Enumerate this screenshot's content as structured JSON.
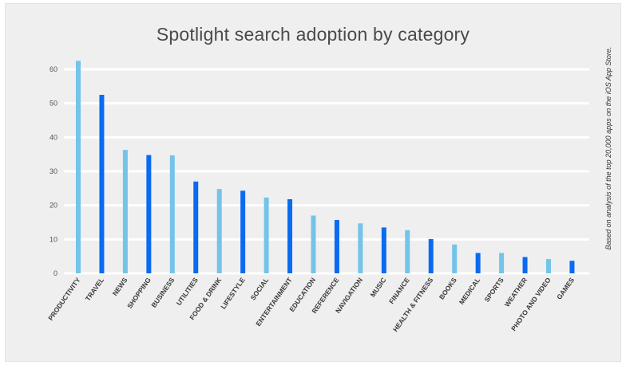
{
  "chart_data": {
    "type": "bar",
    "title": "Spotlight search adoption by category",
    "xlabel": "",
    "ylabel": "",
    "ylim": [
      0,
      65
    ],
    "yticks": [
      0,
      10,
      20,
      30,
      40,
      50,
      60
    ],
    "grid": true,
    "note": "Based on analysis of the top 20,000 apps on the iOS App Store.",
    "colors": {
      "light": "#74c3e9",
      "dark": "#0b6af2",
      "grid": "#ffffff",
      "background": "#efefef"
    },
    "categories": [
      "PRODUCTIVITY",
      "TRAVEL",
      "NEWS",
      "SHOPPING",
      "BUSINESS",
      "UTILITIES",
      "FOOD & DRINK",
      "LIFESTYLE",
      "SOCIAL",
      "ENTERTAINMENT",
      "EDUCATION",
      "REFERENCE",
      "NAVIGATION",
      "MUSIC",
      "FINANCE",
      "HEALTH & FITNESS",
      "BOOKS",
      "MEDICAL",
      "SPORTS",
      "WEATHER",
      "PHOTO AND VIDEO",
      "GAMES"
    ],
    "values": [
      62.5,
      52.5,
      36.3,
      34.8,
      34.7,
      27.0,
      24.8,
      24.3,
      22.3,
      21.8,
      17.0,
      15.7,
      14.7,
      13.5,
      12.7,
      10.1,
      8.5,
      6.0,
      6.0,
      4.8,
      4.2,
      3.7
    ],
    "bar_color_keys": [
      "light",
      "dark",
      "light",
      "dark",
      "light",
      "dark",
      "light",
      "dark",
      "light",
      "dark",
      "light",
      "dark",
      "light",
      "dark",
      "light",
      "dark",
      "light",
      "dark",
      "light",
      "dark",
      "light",
      "dark"
    ]
  }
}
